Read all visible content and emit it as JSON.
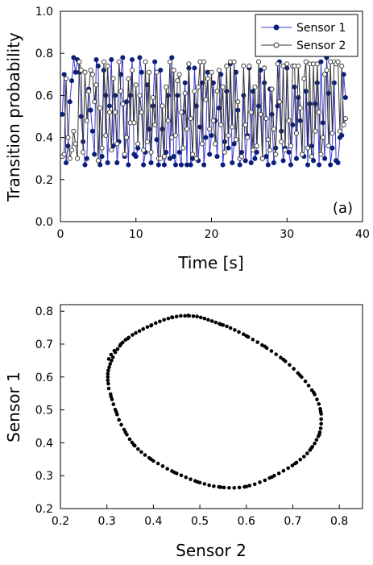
{
  "chart_data": [
    {
      "type": "line",
      "panel_label": "(a)",
      "xlabel": "Time [s]",
      "ylabel": "Transition probability",
      "xlim": [
        0,
        40
      ],
      "ylim": [
        0,
        1
      ],
      "xticks": [
        "0",
        "10",
        "20",
        "30",
        "40"
      ],
      "yticks": [
        "0.0",
        "0.2",
        "0.4",
        "0.6",
        "0.8",
        "1.0"
      ],
      "grid": false,
      "legend_position": "top-right",
      "sample_interval": 0.25,
      "series": [
        {
          "name": "Sensor 1",
          "color": "#3b3bcc",
          "marker_fill": "#0b1f7a",
          "marker": "filled-circle",
          "values": [
            0.51,
            0.7,
            0.28,
            0.36,
            0.57,
            0.67,
            0.78,
            0.71,
            0.77,
            0.71,
            0.5,
            0.38,
            0.27,
            0.3,
            0.63,
            0.53,
            0.43,
            0.32,
            0.77,
            0.74,
            0.27,
            0.31,
            0.72,
            0.6,
            0.28,
            0.55,
            0.77,
            0.36,
            0.6,
            0.28,
            0.38,
            0.7,
            0.78,
            0.31,
            0.57,
            0.27,
            0.6,
            0.77,
            0.32,
            0.31,
            0.35,
            0.78,
            0.71,
            0.27,
            0.33,
            0.65,
            0.44,
            0.28,
            0.55,
            0.76,
            0.39,
            0.27,
            0.72,
            0.44,
            0.27,
            0.33,
            0.6,
            0.3,
            0.78,
            0.31,
            0.27,
            0.6,
            0.33,
            0.27,
            0.52,
            0.66,
            0.27,
            0.73,
            0.27,
            0.3,
            0.73,
            0.55,
            0.29,
            0.45,
            0.66,
            0.27,
            0.4,
            0.71,
            0.32,
            0.41,
            0.66,
            0.48,
            0.31,
            0.54,
            0.7,
            0.27,
            0.38,
            0.62,
            0.35,
            0.75,
            0.28,
            0.37,
            0.71,
            0.53,
            0.27,
            0.33,
            0.6,
            0.29,
            0.41,
            0.73,
            0.28,
            0.62,
            0.3,
            0.33,
            0.55,
            0.72,
            0.3,
            0.66,
            0.31,
            0.27,
            0.63,
            0.51,
            0.28,
            0.35,
            0.55,
            0.76,
            0.43,
            0.29,
            0.35,
            0.73,
            0.33,
            0.27,
            0.46,
            0.64,
            0.3,
            0.59,
            0.48,
            0.32,
            0.31,
            0.62,
            0.27,
            0.56,
            0.36,
            0.29,
            0.56,
            0.66,
            0.27,
            0.76,
            0.47,
            0.3,
            0.78,
            0.61,
            0.27,
            0.35,
            0.66,
            0.29,
            0.28,
            0.4,
            0.41,
            0.7,
            0.59
          ]
        },
        {
          "name": "Sensor 2",
          "color": "#333333",
          "marker_fill": "#ffffff",
          "marker": "open-circle",
          "values": [
            0.31,
            0.32,
            0.68,
            0.4,
            0.3,
            0.34,
            0.43,
            0.37,
            0.3,
            0.76,
            0.72,
            0.33,
            0.71,
            0.48,
            0.62,
            0.72,
            0.7,
            0.57,
            0.65,
            0.29,
            0.54,
            0.35,
            0.76,
            0.41,
            0.74,
            0.52,
            0.34,
            0.68,
            0.52,
            0.37,
            0.76,
            0.62,
            0.56,
            0.32,
            0.4,
            0.68,
            0.47,
            0.72,
            0.47,
            0.65,
            0.37,
            0.6,
            0.52,
            0.34,
            0.76,
            0.38,
            0.71,
            0.33,
            0.59,
            0.46,
            0.71,
            0.3,
            0.3,
            0.55,
            0.31,
            0.64,
            0.48,
            0.76,
            0.4,
            0.72,
            0.41,
            0.67,
            0.7,
            0.52,
            0.35,
            0.61,
            0.44,
            0.75,
            0.49,
            0.32,
            0.62,
            0.3,
            0.64,
            0.76,
            0.37,
            0.76,
            0.58,
            0.68,
            0.44,
            0.71,
            0.48,
            0.37,
            0.62,
            0.72,
            0.46,
            0.64,
            0.33,
            0.74,
            0.41,
            0.76,
            0.45,
            0.76,
            0.39,
            0.57,
            0.3,
            0.31,
            0.74,
            0.46,
            0.4,
            0.74,
            0.52,
            0.34,
            0.64,
            0.36,
            0.76,
            0.51,
            0.3,
            0.73,
            0.49,
            0.39,
            0.34,
            0.63,
            0.44,
            0.32,
            0.75,
            0.57,
            0.38,
            0.74,
            0.34,
            0.75,
            0.48,
            0.36,
            0.74,
            0.74,
            0.42,
            0.74,
            0.54,
            0.32,
            0.68,
            0.76,
            0.35,
            0.75,
            0.31,
            0.75,
            0.43,
            0.75,
            0.52,
            0.32,
            0.4,
            0.7,
            0.72,
            0.36,
            0.76,
            0.42,
            0.76,
            0.75,
            0.76,
            0.43,
            0.74,
            0.46,
            0.49
          ]
        }
      ]
    },
    {
      "type": "scatter",
      "xlabel": "Sensor 2",
      "ylabel": "Sensor 1",
      "xlim": [
        0.2,
        0.85
      ],
      "ylim": [
        0.2,
        0.82
      ],
      "xticks": [
        "0.2",
        "0.3",
        "0.4",
        "0.5",
        "0.6",
        "0.7",
        "0.8"
      ],
      "yticks": [
        "0.2",
        "0.3",
        "0.4",
        "0.5",
        "0.6",
        "0.7",
        "0.8"
      ],
      "grid": false,
      "marker_color": "#000000",
      "points": [
        [
          0.303,
          0.62
        ],
        [
          0.302,
          0.61
        ],
        [
          0.302,
          0.6
        ],
        [
          0.302,
          0.59
        ],
        [
          0.303,
          0.58
        ],
        [
          0.304,
          0.565
        ],
        [
          0.305,
          0.63
        ],
        [
          0.307,
          0.64
        ],
        [
          0.31,
          0.65
        ],
        [
          0.313,
          0.66
        ],
        [
          0.318,
          0.675
        ],
        [
          0.323,
          0.685
        ],
        [
          0.328,
          0.695
        ],
        [
          0.334,
          0.705
        ],
        [
          0.34,
          0.713
        ],
        [
          0.347,
          0.72
        ],
        [
          0.355,
          0.728
        ],
        [
          0.362,
          0.734
        ],
        [
          0.37,
          0.74
        ],
        [
          0.378,
          0.746
        ],
        [
          0.387,
          0.752
        ],
        [
          0.396,
          0.758
        ],
        [
          0.405,
          0.764
        ],
        [
          0.414,
          0.769
        ],
        [
          0.423,
          0.774
        ],
        [
          0.432,
          0.778
        ],
        [
          0.441,
          0.781
        ],
        [
          0.45,
          0.784
        ],
        [
          0.459,
          0.786
        ],
        [
          0.468,
          0.786
        ],
        [
          0.477,
          0.786
        ],
        [
          0.486,
          0.785
        ],
        [
          0.494,
          0.784
        ],
        [
          0.502,
          0.781
        ],
        [
          0.51,
          0.778
        ],
        [
          0.518,
          0.774
        ],
        [
          0.526,
          0.77
        ],
        [
          0.534,
          0.766
        ],
        [
          0.542,
          0.762
        ],
        [
          0.55,
          0.758
        ],
        [
          0.558,
          0.754
        ],
        [
          0.566,
          0.749
        ],
        [
          0.575,
          0.743
        ],
        [
          0.584,
          0.737
        ],
        [
          0.594,
          0.73
        ],
        [
          0.604,
          0.722
        ],
        [
          0.614,
          0.714
        ],
        [
          0.624,
          0.706
        ],
        [
          0.634,
          0.697
        ],
        [
          0.644,
          0.688
        ],
        [
          0.654,
          0.679
        ],
        [
          0.664,
          0.669
        ],
        [
          0.674,
          0.659
        ],
        [
          0.684,
          0.648
        ],
        [
          0.693,
          0.637
        ],
        [
          0.702,
          0.625
        ],
        [
          0.711,
          0.612
        ],
        [
          0.719,
          0.6
        ],
        [
          0.727,
          0.587
        ],
        [
          0.734,
          0.574
        ],
        [
          0.741,
          0.56
        ],
        [
          0.747,
          0.547
        ],
        [
          0.752,
          0.532
        ],
        [
          0.756,
          0.518
        ],
        [
          0.759,
          0.503
        ],
        [
          0.761,
          0.488
        ],
        [
          0.761,
          0.472
        ],
        [
          0.761,
          0.458
        ],
        [
          0.76,
          0.444
        ],
        [
          0.758,
          0.432
        ],
        [
          0.755,
          0.42
        ],
        [
          0.751,
          0.409
        ],
        [
          0.747,
          0.398
        ],
        [
          0.742,
          0.388
        ],
        [
          0.737,
          0.378
        ],
        [
          0.731,
          0.368
        ],
        [
          0.724,
          0.358
        ],
        [
          0.716,
          0.349
        ],
        [
          0.708,
          0.34
        ],
        [
          0.699,
          0.331
        ],
        [
          0.69,
          0.323
        ],
        [
          0.68,
          0.315
        ],
        [
          0.67,
          0.307
        ],
        [
          0.66,
          0.3
        ],
        [
          0.65,
          0.293
        ],
        [
          0.64,
          0.286
        ],
        [
          0.629,
          0.28
        ],
        [
          0.618,
          0.274
        ],
        [
          0.607,
          0.27
        ],
        [
          0.596,
          0.266
        ],
        [
          0.585,
          0.264
        ],
        [
          0.574,
          0.263
        ],
        [
          0.563,
          0.263
        ],
        [
          0.552,
          0.264
        ],
        [
          0.541,
          0.266
        ],
        [
          0.53,
          0.268
        ],
        [
          0.52,
          0.271
        ],
        [
          0.51,
          0.275
        ],
        [
          0.5,
          0.279
        ],
        [
          0.49,
          0.284
        ],
        [
          0.48,
          0.289
        ],
        [
          0.47,
          0.295
        ],
        [
          0.46,
          0.301
        ],
        [
          0.45,
          0.307
        ],
        [
          0.44,
          0.314
        ],
        [
          0.43,
          0.321
        ],
        [
          0.42,
          0.329
        ],
        [
          0.41,
          0.337
        ],
        [
          0.4,
          0.345
        ],
        [
          0.391,
          0.354
        ],
        [
          0.382,
          0.363
        ],
        [
          0.374,
          0.372
        ],
        [
          0.367,
          0.381
        ],
        [
          0.36,
          0.391
        ],
        [
          0.354,
          0.401
        ],
        [
          0.349,
          0.411
        ],
        [
          0.343,
          0.425
        ],
        [
          0.337,
          0.44
        ],
        [
          0.331,
          0.455
        ],
        [
          0.326,
          0.47
        ],
        [
          0.322,
          0.486
        ],
        [
          0.318,
          0.501
        ],
        [
          0.314,
          0.517
        ],
        [
          0.311,
          0.532
        ],
        [
          0.308,
          0.548
        ],
        [
          0.304,
          0.655
        ],
        [
          0.309,
          0.668
        ],
        [
          0.316,
          0.68
        ],
        [
          0.33,
          0.7
        ],
        [
          0.345,
          0.717
        ],
        [
          0.395,
          0.756
        ],
        [
          0.44,
          0.782
        ],
        [
          0.475,
          0.787
        ],
        [
          0.545,
          0.76
        ],
        [
          0.6,
          0.725
        ],
        [
          0.64,
          0.693
        ],
        [
          0.68,
          0.653
        ],
        [
          0.715,
          0.606
        ],
        [
          0.745,
          0.553
        ],
        [
          0.76,
          0.495
        ],
        [
          0.757,
          0.425
        ],
        [
          0.74,
          0.384
        ],
        [
          0.705,
          0.337
        ],
        [
          0.655,
          0.296
        ],
        [
          0.6,
          0.267
        ],
        [
          0.545,
          0.265
        ],
        [
          0.495,
          0.281
        ],
        [
          0.445,
          0.31
        ],
        [
          0.395,
          0.35
        ],
        [
          0.358,
          0.394
        ],
        [
          0.34,
          0.432
        ],
        [
          0.32,
          0.494
        ],
        [
          0.309,
          0.54
        ]
      ]
    }
  ]
}
